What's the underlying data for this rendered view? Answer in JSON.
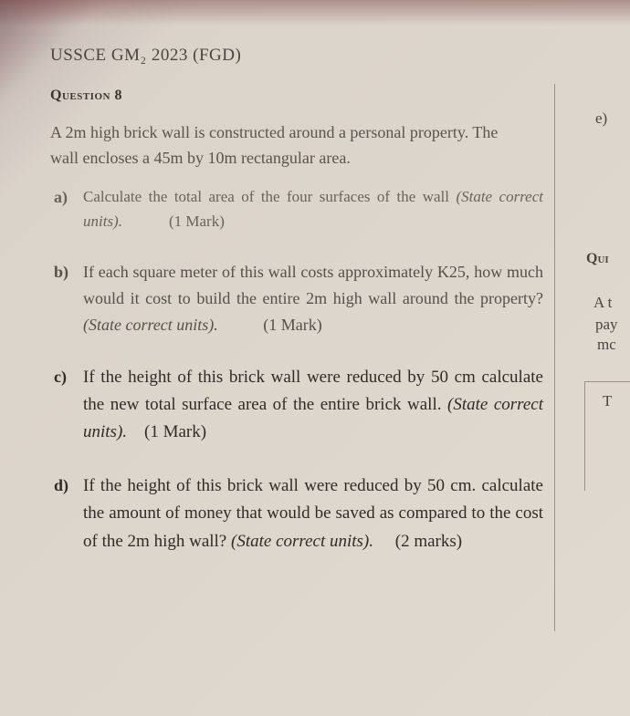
{
  "header": "USSCE GM₂ 2023 (FGD)",
  "question_label": "Question 8",
  "intro": "A 2m high brick wall is constructed around a personal property. The wall encloses a 45m by 10m rectangular area.",
  "parts": {
    "a": {
      "letter": "a)",
      "text_before": "Calculate the total area of the four surfaces of the wall ",
      "italic": "(State correct units).",
      "mark": "(1 Mark)"
    },
    "b": {
      "letter": "b)",
      "text_before": "If each square meter of this wall costs approximately K25, how much would it cost to build the entire 2m high wall around the property? ",
      "italic": "(State correct units).",
      "mark": "(1 Mark)"
    },
    "c": {
      "letter": "c)",
      "text_before": "If the height of this brick wall were reduced by 50 cm calculate the new total surface area of the entire brick wall. ",
      "italic": "(State correct units).",
      "mark": "(1 Mark)"
    },
    "d": {
      "letter": "d)",
      "text_before": "If the height of this brick wall were reduced by 50 cm. calculate the amount of money that would be saved as compared to the cost of the 2m high wall? ",
      "italic": "(State correct units).",
      "mark": "(2 marks)"
    }
  },
  "right_col": {
    "e": "e)",
    "qui": "Qui",
    "at": "A t",
    "pay": "pay",
    "mc": "mc",
    "t": "T"
  }
}
